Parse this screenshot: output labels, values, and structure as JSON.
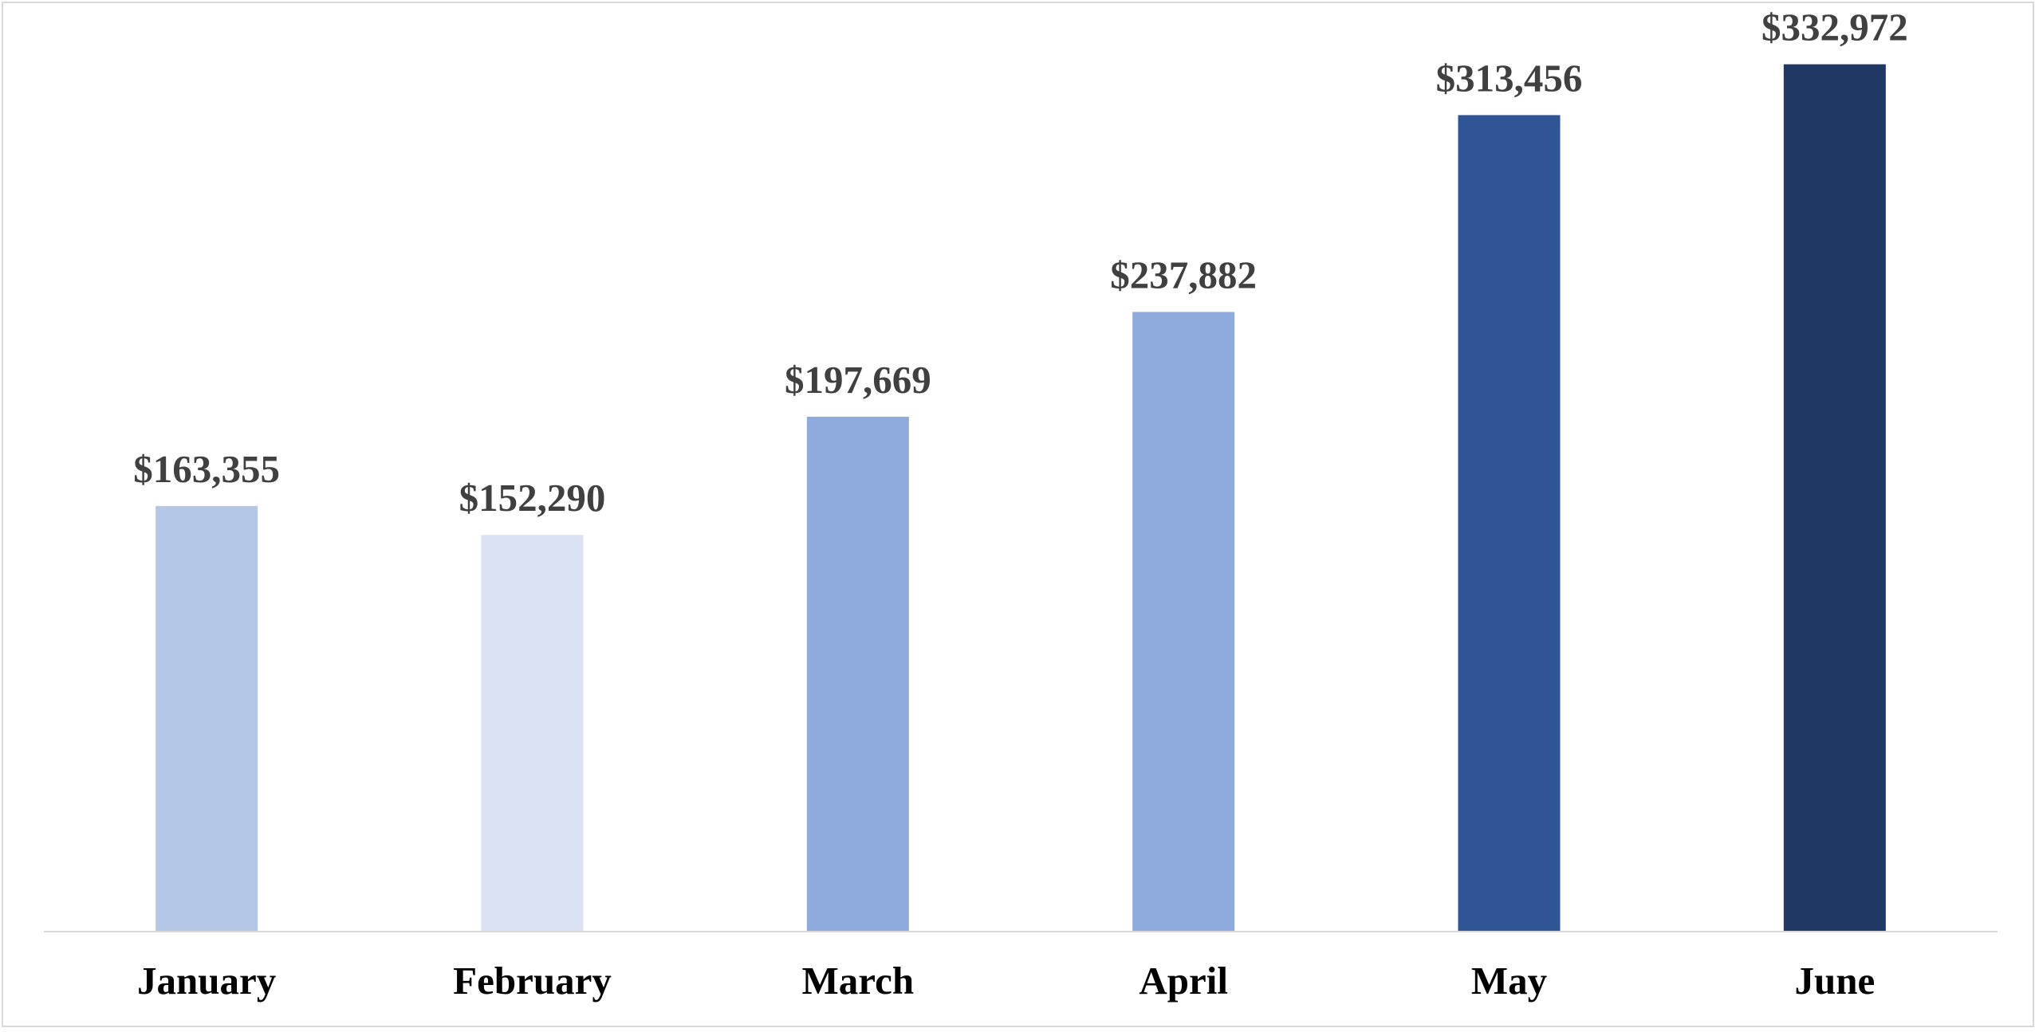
{
  "chart_data": {
    "type": "bar",
    "title": "",
    "xlabel": "",
    "ylabel": "",
    "categories": [
      "January",
      "February",
      "March",
      "April",
      "May",
      "June"
    ],
    "values": [
      163355,
      152290,
      197669,
      237882,
      313456,
      332972
    ],
    "data_labels": [
      "$163,355",
      "$152,290",
      "$197,669",
      "$237,882",
      "$313,456",
      "$332,972"
    ],
    "colors": [
      "#b4c7e7",
      "#dae3f3",
      "#8faadc",
      "#8faadc",
      "#2f5597",
      "#203864"
    ],
    "ylim": [
      0,
      350000
    ],
    "grid": false,
    "legend": "none"
  }
}
